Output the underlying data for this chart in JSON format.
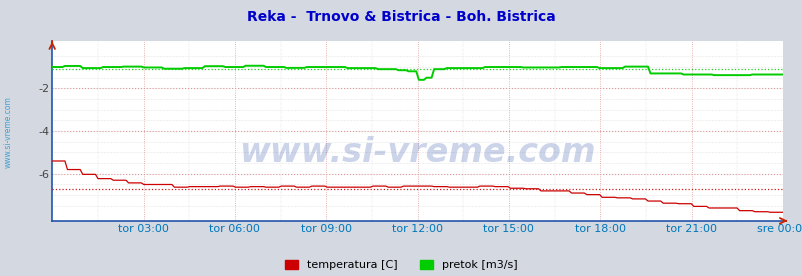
{
  "title": "Reka -  Trnovo & Bistrica - Boh. Bistrica",
  "title_color": "#0000cc",
  "title_fontsize": 10,
  "bg_color": "#d4d8e0",
  "plot_bg_color": "#ffffff",
  "x_label_color": "#0077bb",
  "y_label_color": "#444444",
  "watermark": "www.si-vreme.com",
  "watermark_color": "#3355aa",
  "watermark_alpha": 0.25,
  "watermark_fontsize": 24,
  "side_text": "www.si-vreme.com",
  "side_text_color": "#3399cc",
  "x_ticks_labels": [
    "tor 03:00",
    "tor 06:00",
    "tor 09:00",
    "tor 12:00",
    "tor 15:00",
    "tor 18:00",
    "tor 21:00",
    "sre 00:00"
  ],
  "x_ticks_norm": [
    0.125,
    0.25,
    0.375,
    0.5,
    0.625,
    0.75,
    0.875,
    1.0
  ],
  "ylim": [
    -8.2,
    0.2
  ],
  "yticks": [
    -6,
    -4,
    -2
  ],
  "grid_color_main": "#dd9999",
  "grid_color_minor": "#ccbbbb",
  "grid_color_gray": "#cccccc",
  "temp_color": "#cc0000",
  "flow_color": "#00cc00",
  "temp_mean_line": -6.7,
  "flow_mean_line": -1.1,
  "legend_labels": [
    "temperatura [C]",
    "pretok [m3/s]"
  ],
  "legend_colors": [
    "#cc0000",
    "#00cc00"
  ],
  "n_points": 288
}
